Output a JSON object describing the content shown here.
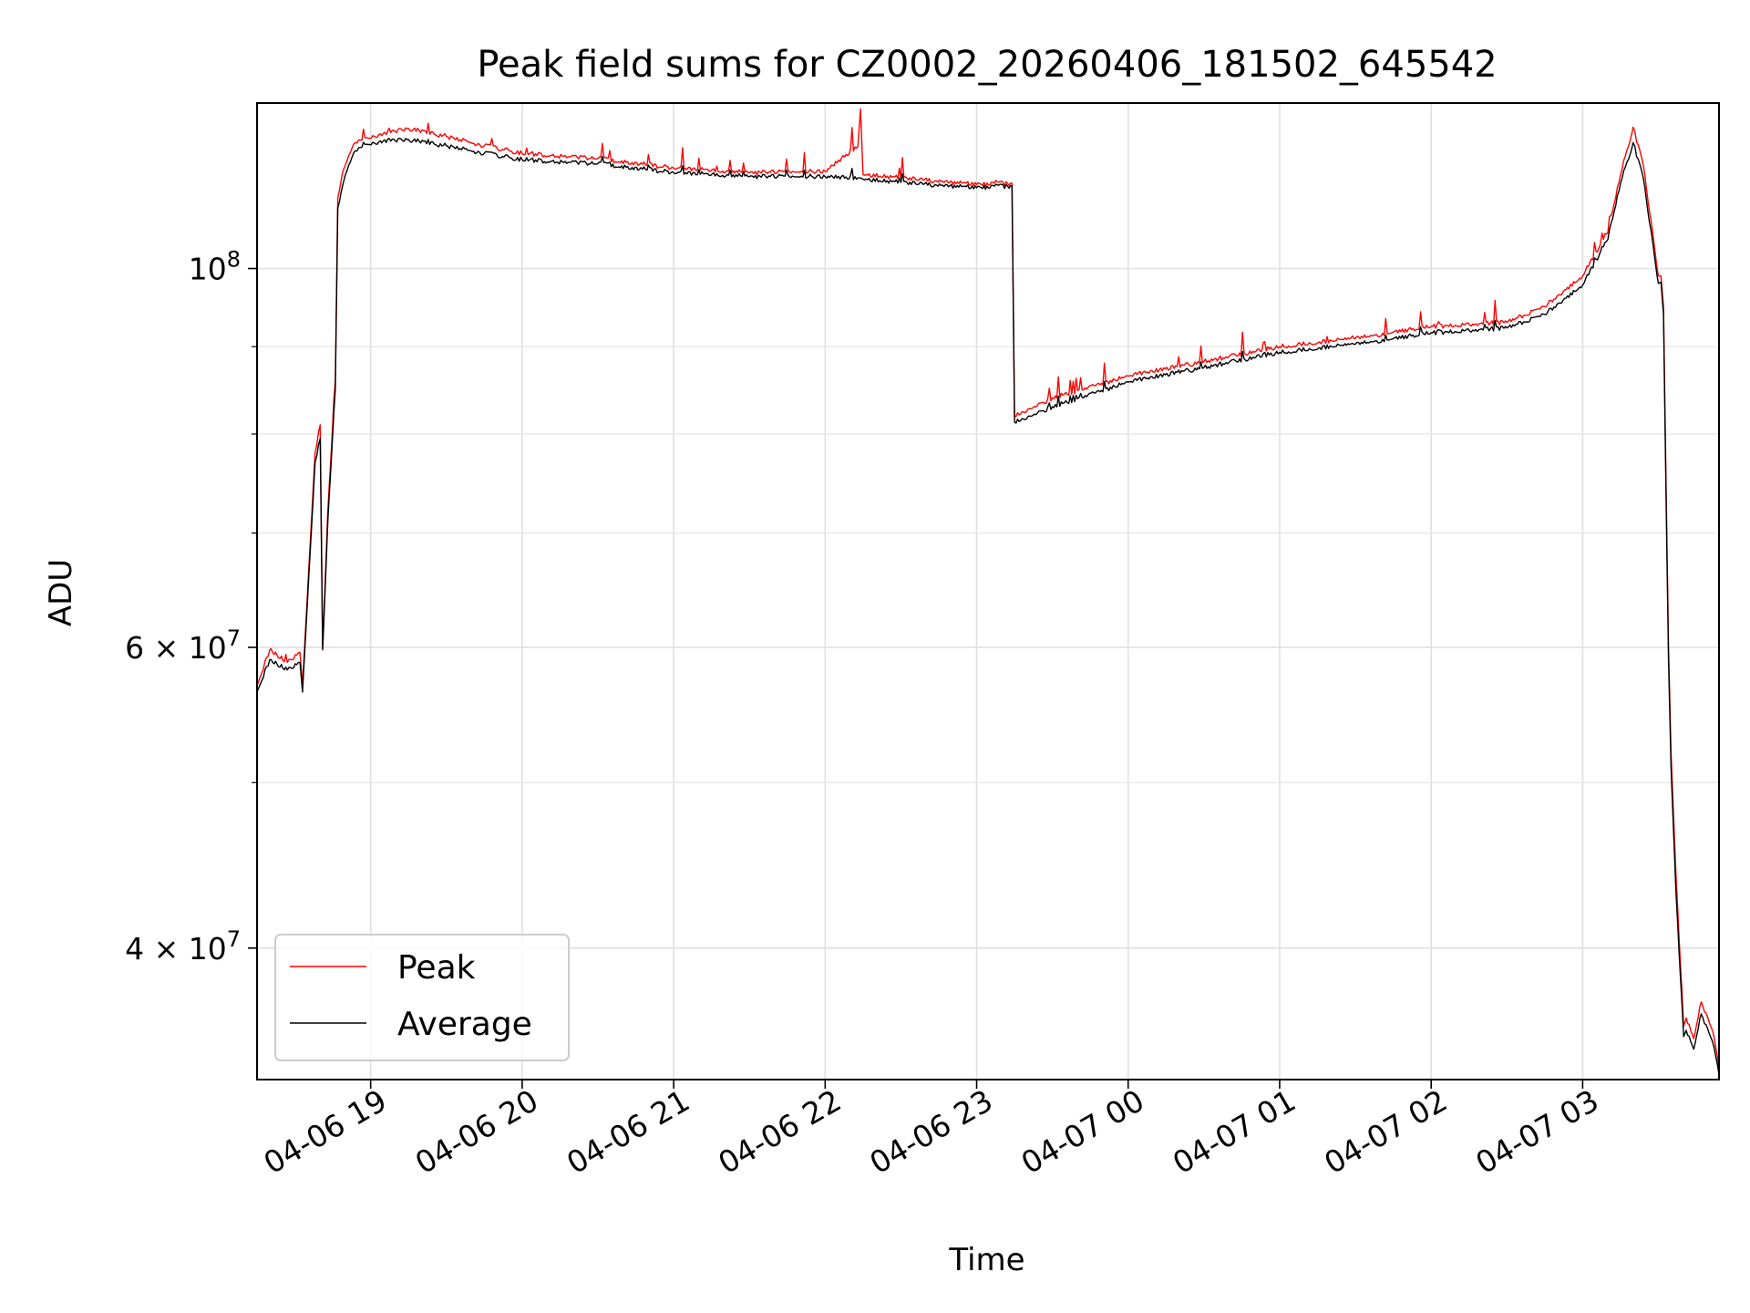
{
  "chart_data": {
    "type": "line",
    "title": "Peak field sums for CZ0002_20260406_181502_645542",
    "xlabel": "Time",
    "ylabel": "ADU",
    "x_scale": "time",
    "y_scale": "log",
    "grid": true,
    "legend_position": "lower-left",
    "xlim": [
      "2026-04-06 18:15",
      "2026-04-07 03:54"
    ],
    "ylim": [
      33500000,
      125000000
    ],
    "x_ticks": [
      {
        "value": "2026-04-06 19:00",
        "label": "04-06 19"
      },
      {
        "value": "2026-04-06 20:00",
        "label": "04-06 20"
      },
      {
        "value": "2026-04-06 21:00",
        "label": "04-06 21"
      },
      {
        "value": "2026-04-06 22:00",
        "label": "04-06 22"
      },
      {
        "value": "2026-04-06 23:00",
        "label": "04-06 23"
      },
      {
        "value": "2026-04-07 00:00",
        "label": "04-07 00"
      },
      {
        "value": "2026-04-07 01:00",
        "label": "04-07 01"
      },
      {
        "value": "2026-04-07 02:00",
        "label": "04-07 02"
      },
      {
        "value": "2026-04-07 03:00",
        "label": "04-07 03"
      }
    ],
    "y_major_ticks": [
      {
        "value": 100000000,
        "base": "10",
        "exp": "8",
        "label": "10^8"
      },
      {
        "value": 60000000,
        "base": "6 × 10",
        "exp": "7",
        "label": "6 × 10^7"
      },
      {
        "value": 40000000,
        "base": "4 × 10",
        "exp": "7",
        "label": "4 × 10^7"
      }
    ],
    "y_minor_ticks": [
      50000000,
      70000000,
      80000000,
      90000000
    ],
    "series": [
      {
        "name": "Peak",
        "color": "#ff0000",
        "x": [
          "2026-04-06 18:15",
          "2026-04-06 18:20",
          "2026-04-06 18:27",
          "2026-04-06 18:32",
          "2026-04-06 18:33",
          "2026-04-06 18:38",
          "2026-04-06 18:40",
          "2026-04-06 18:41",
          "2026-04-06 18:43",
          "2026-04-06 18:46",
          "2026-04-06 18:47",
          "2026-04-06 18:49",
          "2026-04-06 18:50",
          "2026-04-06 18:52",
          "2026-04-06 18:54",
          "2026-04-06 18:59",
          "2026-04-06 19:05",
          "2026-04-06 19:15",
          "2026-04-06 19:30",
          "2026-04-06 19:45",
          "2026-04-06 20:00",
          "2026-04-06 20:30",
          "2026-04-06 21:00",
          "2026-04-06 21:30",
          "2026-04-06 22:00",
          "2026-04-06 22:13",
          "2026-04-06 22:14",
          "2026-04-06 22:15",
          "2026-04-06 22:30",
          "2026-04-06 23:00",
          "2026-04-06 23:14",
          "2026-04-06 23:15",
          "2026-04-06 23:30",
          "2026-04-07 00:00",
          "2026-04-07 00:30",
          "2026-04-07 01:00",
          "2026-04-07 01:30",
          "2026-04-07 01:45",
          "2026-04-07 02:00",
          "2026-04-07 02:30",
          "2026-04-07 02:45",
          "2026-04-07 03:00",
          "2026-04-07 03:10",
          "2026-04-07 03:15",
          "2026-04-07 03:20",
          "2026-04-07 03:24",
          "2026-04-07 03:30",
          "2026-04-07 03:31",
          "2026-04-07 03:32",
          "2026-04-07 03:34",
          "2026-04-07 03:35",
          "2026-04-07 03:37",
          "2026-04-07 03:40",
          "2026-04-07 03:41",
          "2026-04-07 03:44",
          "2026-04-07 03:47",
          "2026-04-07 03:52",
          "2026-04-07 03:54"
        ],
        "y": [
          57000000,
          59800000,
          58800000,
          59600000,
          57000000,
          78000000,
          81000000,
          60000000,
          72000000,
          86000000,
          110000000,
          114000000,
          115000000,
          117000000,
          118500000,
          119200000,
          120000000,
          120800000,
          119500000,
          118000000,
          116800000,
          116000000,
          114500000,
          113800000,
          114000000,
          118000000,
          124000000,
          113500000,
          113000000,
          112000000,
          112200000,
          82000000,
          84000000,
          86500000,
          88200000,
          90000000,
          91000000,
          91800000,
          92500000,
          93000000,
          95000000,
          99000000,
          105000000,
          113500000,
          121000000,
          115000000,
          99000000,
          99000000,
          95000000,
          60000000,
          52000000,
          44000000,
          36000000,
          36400000,
          35400000,
          37200000,
          35500000,
          34000000
        ]
      },
      {
        "name": "Average",
        "color": "#000000",
        "x": [
          "2026-04-06 18:15",
          "2026-04-06 18:20",
          "2026-04-06 18:27",
          "2026-04-06 18:32",
          "2026-04-06 18:33",
          "2026-04-06 18:38",
          "2026-04-06 18:40",
          "2026-04-06 18:41",
          "2026-04-06 18:43",
          "2026-04-06 18:46",
          "2026-04-06 18:47",
          "2026-04-06 18:49",
          "2026-04-06 18:50",
          "2026-04-06 18:52",
          "2026-04-06 18:54",
          "2026-04-06 18:59",
          "2026-04-06 19:05",
          "2026-04-06 19:15",
          "2026-04-06 19:30",
          "2026-04-06 19:45",
          "2026-04-06 20:00",
          "2026-04-06 20:30",
          "2026-04-06 21:00",
          "2026-04-06 21:30",
          "2026-04-06 22:00",
          "2026-04-06 22:13",
          "2026-04-06 22:14",
          "2026-04-06 22:15",
          "2026-04-06 22:30",
          "2026-04-06 23:00",
          "2026-04-06 23:14",
          "2026-04-06 23:15",
          "2026-04-06 23:30",
          "2026-04-07 00:00",
          "2026-04-07 00:30",
          "2026-04-07 01:00",
          "2026-04-07 01:30",
          "2026-04-07 01:45",
          "2026-04-07 02:00",
          "2026-04-07 02:30",
          "2026-04-07 02:45",
          "2026-04-07 03:00",
          "2026-04-07 03:10",
          "2026-04-07 03:15",
          "2026-04-07 03:20",
          "2026-04-07 03:24",
          "2026-04-07 03:30",
          "2026-04-07 03:31",
          "2026-04-07 03:32",
          "2026-04-07 03:34",
          "2026-04-07 03:35",
          "2026-04-07 03:37",
          "2026-04-07 03:40",
          "2026-04-07 03:41",
          "2026-04-07 03:44",
          "2026-04-07 03:47",
          "2026-04-07 03:52",
          "2026-04-07 03:54"
        ],
        "y": [
          56500000,
          59000000,
          58200000,
          58800000,
          56500000,
          77000000,
          79500000,
          59800000,
          71000000,
          85000000,
          108500000,
          112000000,
          113500000,
          115500000,
          117200000,
          118200000,
          118800000,
          119000000,
          118000000,
          116800000,
          115800000,
          115200000,
          113800000,
          113200000,
          113200000,
          113000000,
          113000000,
          112800000,
          112300000,
          111500000,
          111800000,
          81300000,
          83000000,
          85800000,
          87500000,
          89300000,
          90300000,
          91000000,
          91700000,
          92300000,
          94000000,
          97800000,
          104000000,
          112200000,
          118500000,
          113000000,
          98000000,
          98200000,
          94000000,
          59000000,
          51000000,
          43000000,
          35500000,
          35800000,
          34900000,
          36600000,
          35000000,
          33700000
        ]
      }
    ]
  }
}
